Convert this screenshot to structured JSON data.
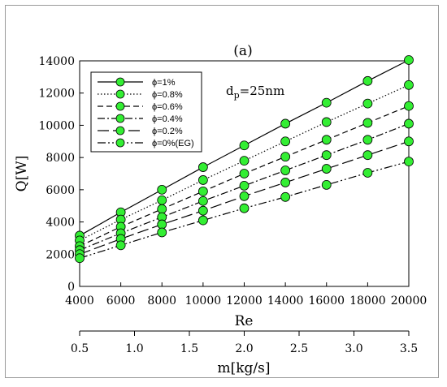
{
  "chart_data": {
    "type": "line",
    "title": "(a)",
    "annotation": "dp=25nm",
    "annotation_main": "d",
    "annotation_sub": "p",
    "annotation_rest": "=25nm",
    "xlabel": "Re",
    "ylabel": "Q[W]",
    "secondary_xlabel": "m[kg/s]",
    "x": [
      4000,
      6000,
      8000,
      10000,
      12000,
      14000,
      16000,
      18000,
      20000
    ],
    "xlim": [
      4000,
      20000
    ],
    "ylim": [
      0,
      14000
    ],
    "xticks": [
      "4000",
      "6000",
      "8000",
      "10000",
      "12000",
      "14000",
      "16000",
      "18000",
      "20000"
    ],
    "yticks": [
      "0",
      "2000",
      "4000",
      "6000",
      "8000",
      "10000",
      "12000",
      "14000"
    ],
    "secondary_xticks": [
      "0.5",
      "1.0",
      "1.5",
      "2.0",
      "2.5",
      "3.0",
      "3.5"
    ],
    "secondary_xlim": [
      0.5,
      3.5
    ],
    "legend_position": "top-left",
    "marker_color": "#33ee33",
    "series": [
      {
        "name": "ϕ=1%",
        "values": [
          3150,
          4600,
          6000,
          7400,
          8750,
          10100,
          11400,
          12750,
          14050
        ]
      },
      {
        "name": "ϕ=0.8%",
        "values": [
          2850,
          4150,
          5350,
          6600,
          7800,
          9000,
          10200,
          11350,
          12500
        ]
      },
      {
        "name": "ϕ=0.6%",
        "values": [
          2500,
          3700,
          4800,
          5900,
          7000,
          8050,
          9100,
          10150,
          11200
        ]
      },
      {
        "name": "ϕ=0.4%",
        "values": [
          2250,
          3300,
          4300,
          5300,
          6250,
          7200,
          8150,
          9100,
          10100
        ]
      },
      {
        "name": "ϕ=0.2%",
        "values": [
          2000,
          2950,
          3850,
          4700,
          5600,
          6450,
          7300,
          8150,
          9000
        ]
      },
      {
        "name": "ϕ=0%(EG)",
        "values": [
          1750,
          2550,
          3350,
          4100,
          4850,
          5550,
          6300,
          7050,
          7750
        ]
      }
    ]
  }
}
